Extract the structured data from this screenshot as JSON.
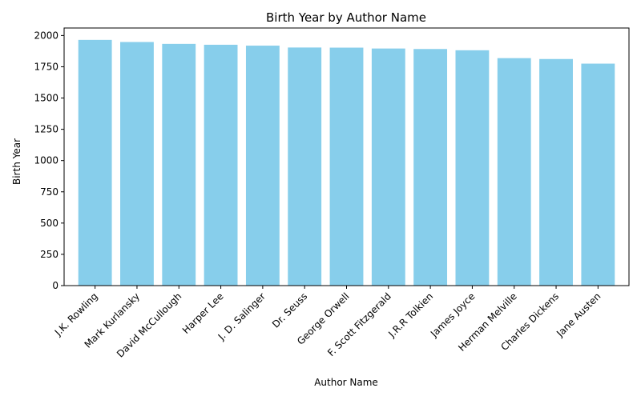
{
  "chart_data": {
    "type": "bar",
    "title": "Birth Year by Author Name",
    "xlabel": "Author Name",
    "ylabel": "Birth Year",
    "categories": [
      "J.K. Rowling",
      "Mark Kurlansky",
      "David McCullough",
      "Harper Lee",
      "J. D. Salinger",
      "Dr. Seuss",
      "George Orwell",
      "F. Scott Fitzgerald",
      "J.R.R Tolkien",
      "James Joyce",
      "Herman Melville",
      "Charles Dickens",
      "Jane Austen"
    ],
    "values": [
      1965,
      1948,
      1933,
      1926,
      1919,
      1904,
      1903,
      1896,
      1892,
      1882,
      1819,
      1812,
      1775
    ],
    "ylim": [
      0,
      2060
    ],
    "yticks": [
      0,
      250,
      500,
      750,
      1000,
      1250,
      1500,
      1750,
      2000
    ],
    "ytick_labels": [
      "0",
      "250",
      "500",
      "750",
      "1000",
      "1250",
      "1500",
      "1750",
      "2000"
    ],
    "grid": false,
    "bar_color": "#87CEEB"
  }
}
